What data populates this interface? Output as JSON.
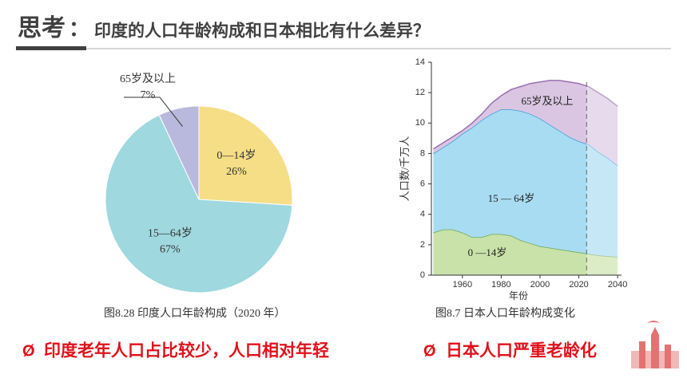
{
  "header": {
    "label": "思考",
    "colon": "：",
    "question": "印度的人口年龄构成和日本相比有什么差异？"
  },
  "chart_data": [
    {
      "type": "pie",
      "caption": "图8.28   印度人口年龄构成（2020 年）",
      "categories": [
        "0—14岁",
        "15—64岁",
        "65岁及以上"
      ],
      "values": [
        26,
        67,
        7
      ],
      "value_labels": [
        "26%",
        "67%",
        "7%"
      ],
      "colors": [
        "#f6de87",
        "#9fd8df",
        "#b9b9dd"
      ]
    },
    {
      "type": "area",
      "caption": "图8.7   日本人口年龄构成变化",
      "y_label": "人口数/千万人",
      "x_label": "年份",
      "x": [
        1945,
        1950,
        1955,
        1960,
        1965,
        1970,
        1975,
        1980,
        1985,
        1990,
        1995,
        2000,
        2005,
        2010,
        2015,
        2020,
        2025,
        2030,
        2035,
        2040
      ],
      "series": [
        {
          "name": "0 —14岁",
          "color": "#c9e2a9",
          "line_color": "#6aa84f",
          "values": [
            2.8,
            3.0,
            3.0,
            2.8,
            2.5,
            2.5,
            2.7,
            2.7,
            2.6,
            2.3,
            2.1,
            1.9,
            1.8,
            1.7,
            1.6,
            1.5,
            1.4,
            1.3,
            1.25,
            1.2
          ]
        },
        {
          "name": "15 — 64岁",
          "color": "#a8dcf2",
          "line_color": "#3d9bd6",
          "values": [
            5.2,
            5.4,
            5.8,
            6.5,
            7.2,
            7.7,
            7.9,
            8.2,
            8.3,
            8.5,
            8.5,
            8.4,
            8.1,
            7.8,
            7.5,
            7.3,
            7.2,
            6.8,
            6.45,
            6.0
          ]
        },
        {
          "name": "65岁及以上",
          "color": "#dac6e3",
          "line_color": "#9a6fae",
          "values": [
            0.3,
            0.3,
            0.3,
            0.2,
            0.3,
            0.4,
            0.7,
            0.9,
            1.3,
            1.6,
            2.0,
            2.4,
            2.9,
            3.3,
            3.6,
            3.8,
            3.8,
            3.9,
            3.9,
            3.9
          ]
        }
      ],
      "forecast_from": 2024,
      "xlim": [
        1944,
        2042
      ],
      "ylim": [
        0,
        14
      ],
      "xticks": [
        1960,
        1980,
        2000,
        2020,
        2040
      ],
      "yticks": [
        0,
        2,
        4,
        6,
        8,
        10,
        12,
        14
      ]
    }
  ],
  "conclusions": [
    {
      "bullet": "Ø",
      "text": "印度老年人口占比较少，人口相对年轻"
    },
    {
      "bullet": "Ø",
      "text": "日本人口严重老龄化"
    }
  ]
}
